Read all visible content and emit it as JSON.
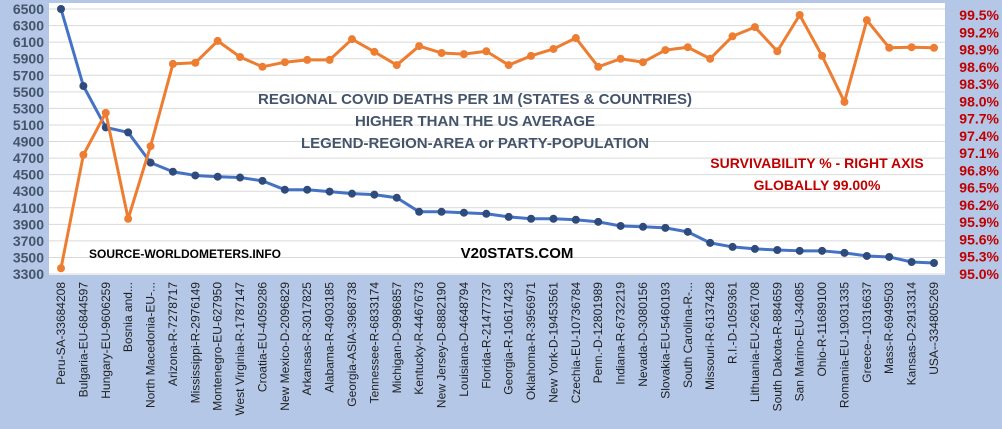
{
  "chart_data": {
    "type": "line",
    "title_lines": [
      "REGIONAL COVID DEATHS PER 1M  (STATES & COUNTRIES)",
      "HIGHER THAN THE US AVERAGE",
      "LEGEND-REGION-AREA or PARTY-POPULATION"
    ],
    "annotations": {
      "source": "SOURCE-WORLDOMETERS.INFO",
      "site": "V20STATS.COM",
      "survivability_line1": "SURVIVABILITY % - RIGHT AXIS",
      "survivability_line2": "GLOBALLY 99.00%"
    },
    "categories": [
      "Peru-SA-33684208",
      "Bulgaria-EU-6844597",
      "Hungary-EU-9606259",
      "Bosnia and...",
      "North Macedonia-EU-...",
      "Arizona-R-7278717",
      "Mississippi-R-2976149",
      "Montenegro-EU-627950",
      "West Virginia-R-1787147",
      "Croatia-EU-4059286",
      "New Mexico-D-2096829",
      "Arkansas-R-3017825",
      "Alabama-R-4903185",
      "Georgia-ASIA-3968738",
      "Tennessee-R-6833174",
      "Michigan-D-9986857",
      "Kentucky-R-4467673",
      "New Jersey-D-8882190",
      "Louisiana-D-4648794",
      "Florida-R-21477737",
      "Georgia-R-10617423",
      "Oklahoma-R-3956971",
      "New York-D-19453561",
      "Czechia-EU-10736784",
      "Penn.-D-12801989",
      "Indiana-R-6732219",
      "Nevada-D-3080156",
      "Slovakia-EU-5460193",
      "South Carolina-R-...",
      "Missouri-R-6137428",
      "R.I.-D-1059361",
      "Lithuania-EU-2661708",
      "South Dakota-R-884659",
      "San Marino-EU-34085",
      "Ohio-R-11689100",
      "Romania-EU-19031335",
      "Greece--10316637",
      "Mass-R-6949503",
      "Kansas-D-2913314",
      "USA--334805269"
    ],
    "series": [
      {
        "name": "Deaths per 1M",
        "axis": "left",
        "color": "#4472c4",
        "values": [
          6500,
          5570,
          5070,
          5010,
          4645,
          4535,
          4490,
          4475,
          4465,
          4425,
          4318,
          4318,
          4295,
          4270,
          4258,
          4221,
          4051,
          4051,
          4040,
          4027,
          3990,
          3967,
          3967,
          3955,
          3930,
          3880,
          3870,
          3857,
          3809,
          3676,
          3627,
          3603,
          3590,
          3580,
          3580,
          3555,
          3518,
          3506,
          3445,
          3433
        ]
      },
      {
        "name": "Survivability %",
        "axis": "right",
        "color": "#ed7d31",
        "values": [
          95.1,
          97.07,
          97.8,
          95.96,
          97.22,
          98.65,
          98.67,
          99.05,
          98.77,
          98.6,
          98.68,
          98.72,
          98.72,
          99.08,
          98.86,
          98.63,
          98.96,
          98.84,
          98.82,
          98.87,
          98.63,
          98.79,
          98.91,
          99.1,
          98.6,
          98.74,
          98.68,
          98.89,
          98.94,
          98.74,
          99.13,
          99.29,
          98.87,
          99.5,
          98.79,
          97.99,
          99.41,
          98.93,
          98.94,
          98.93
        ]
      }
    ],
    "left_axis": {
      "ylim": [
        3300,
        6500
      ],
      "ticks": [
        "6500",
        "6300",
        "6100",
        "5900",
        "5700",
        "5500",
        "5300",
        "5100",
        "4900",
        "4700",
        "4500",
        "4300",
        "4100",
        "3900",
        "3700",
        "3500",
        "3300"
      ]
    },
    "right_axis": {
      "ylim": [
        95.0,
        99.5
      ],
      "ticks": [
        "99.5%",
        "99.2%",
        "98.9%",
        "98.6%",
        "98.3%",
        "98.0%",
        "97.7%",
        "97.4%",
        "97.1%",
        "96.8%",
        "96.5%",
        "96.2%",
        "95.9%",
        "95.6%",
        "95.3%",
        "95.0%"
      ]
    },
    "grid": true,
    "colors": {
      "background": "#b4c7e7",
      "plot": "#ffffff",
      "left_series": "#4472c4",
      "right_series": "#ed7d31",
      "right_axis_text": "#c00000"
    }
  }
}
